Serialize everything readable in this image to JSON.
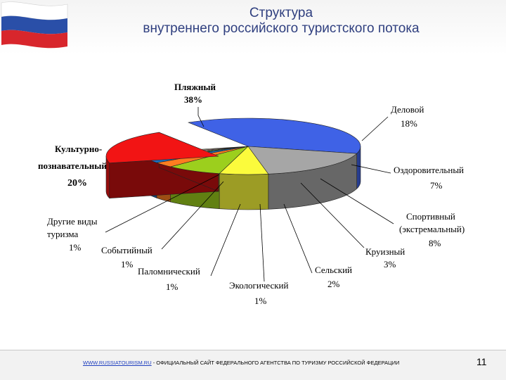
{
  "slide": {
    "title_line1": "Структура",
    "title_line2": "внутреннего российского туристского потока",
    "page_number": "11"
  },
  "footer": {
    "link_text": "WWW.RUSSIATOURISM.RU",
    "text": " - ОФИЦИАЛЬНЫЙ САЙТ ФЕДЕРАЛЬНОГО АГЕНТСТВА ПО ТУРИЗМУ РОССИЙСКОЙ ФЕДЕРАЦИИ"
  },
  "colors": {
    "title": "#2f3f7f",
    "flag_white": "#ffffff",
    "flag_blue": "#2a4fa8",
    "flag_red": "#d8262c"
  },
  "chart_data": {
    "type": "pie",
    "style": "3d-exploded",
    "slices": [
      {
        "name_lines": [
          "Пляжный"
        ],
        "value_label": "38%",
        "value": 38,
        "color": "#3f62e6"
      },
      {
        "name_lines": [
          "Деловой"
        ],
        "value_label": "18%",
        "value": 18,
        "color": "#a6a6a6"
      },
      {
        "name_lines": [
          "Оздоровительный"
        ],
        "value_label": "7%",
        "value": 7,
        "color": "#fbfb3c"
      },
      {
        "name_lines": [
          "Спортивный",
          "(экстремальный)"
        ],
        "value_label": "8%",
        "value": 8,
        "color": "#9ccf1d"
      },
      {
        "name_lines": [
          "Круизный"
        ],
        "value_label": "3%",
        "value": 3,
        "color": "#fe7d20"
      },
      {
        "name_lines": [
          "Сельский"
        ],
        "value_label": "2%",
        "value": 2,
        "color": "#1b6fc1"
      },
      {
        "name_lines": [
          "Экологический"
        ],
        "value_label": "1%",
        "value": 1,
        "color": "#1f8a33"
      },
      {
        "name_lines": [
          "Паломнический"
        ],
        "value_label": "1%",
        "value": 1,
        "color": "#e7e99c"
      },
      {
        "name_lines": [
          "Событийный"
        ],
        "value_label": "1%",
        "value": 1,
        "color": "#f3a3d0"
      },
      {
        "name_lines": [
          "Другие виды",
          "туризма"
        ],
        "value_label": "1%",
        "value": 1,
        "color": "#f5efb8"
      },
      {
        "name_lines": [
          "Культурно-",
          "познавательный"
        ],
        "value_label": "20%",
        "value": 20,
        "color": "#f21414"
      }
    ]
  }
}
